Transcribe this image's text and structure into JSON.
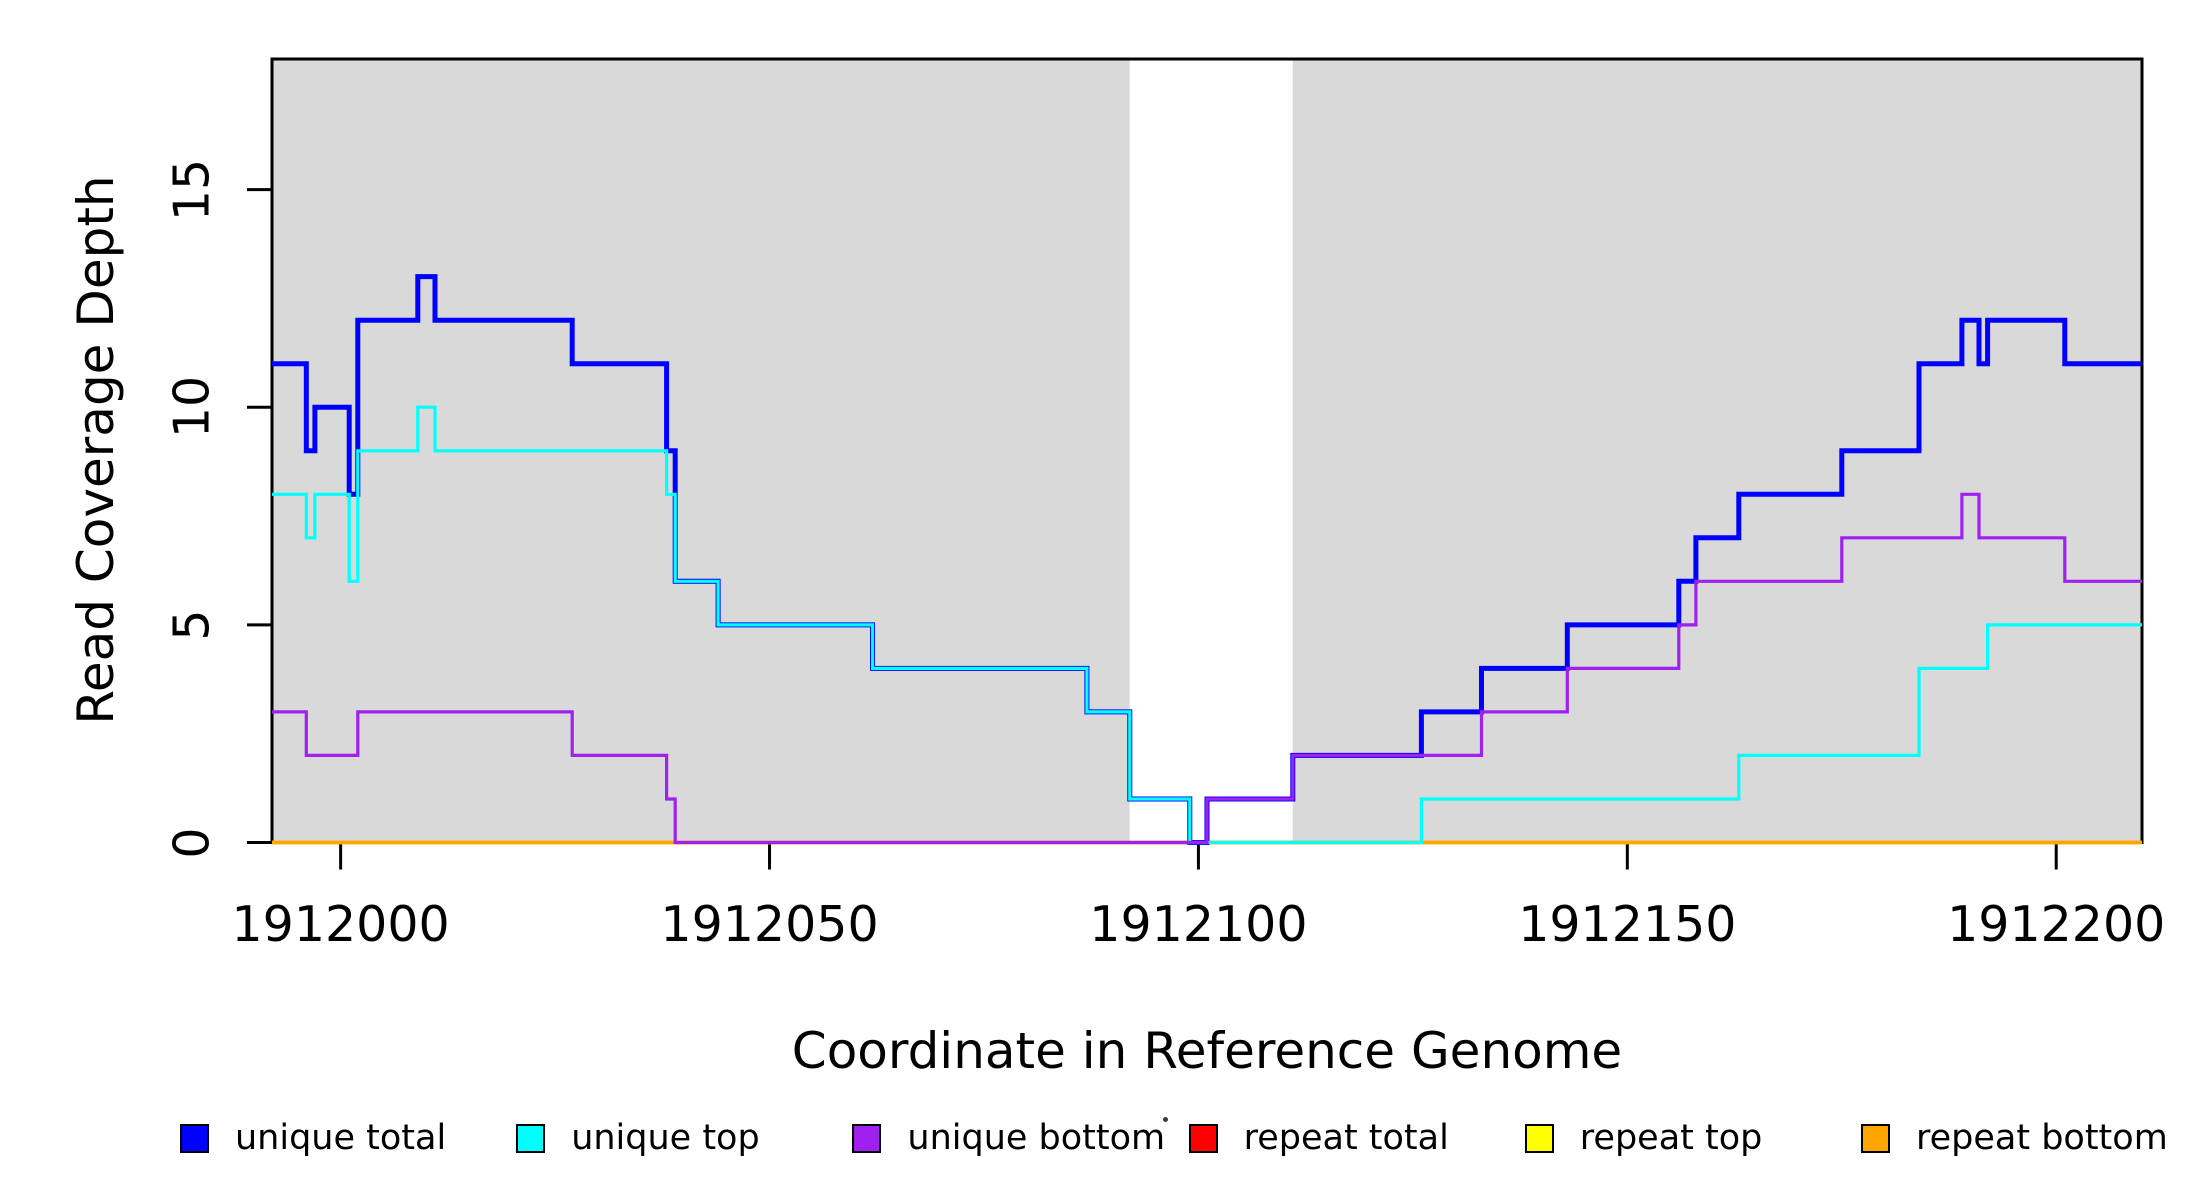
{
  "axes": {
    "x": {
      "label": "Coordinate in Reference Genome",
      "ticks": [
        1912000,
        1912050,
        1912100,
        1912150,
        1912200
      ],
      "range": [
        1911992,
        1912210
      ]
    },
    "y": {
      "label": "Read Coverage Depth",
      "ticks": [
        0,
        5,
        10,
        15
      ],
      "range": [
        0,
        18
      ]
    }
  },
  "chart_data": {
    "type": "line",
    "step_mode": "step-after",
    "title": "",
    "xlabel": "Coordinate in Reference Genome",
    "ylabel": "Read Coverage Depth",
    "xlim": [
      1911992,
      1912210
    ],
    "ylim": [
      0,
      18
    ],
    "grid": false,
    "plot_background": "#FFFFFF",
    "background_bands": [
      {
        "from": 1911992,
        "to": 1912092,
        "color": "#D9D9D9"
      },
      {
        "from": 1912092,
        "to": 1912111,
        "color": "#FFFFFF"
      },
      {
        "from": 1912111,
        "to": 1912210,
        "color": "#D9D9D9"
      }
    ],
    "x_end": 1912210,
    "series": [
      {
        "name": "repeat total",
        "color": "#FF0000",
        "width": 3.4,
        "steps": [
          [
            1911992,
            0
          ]
        ]
      },
      {
        "name": "repeat top",
        "color": "#FFFF00",
        "width": 3.4,
        "steps": [
          [
            1911992,
            0
          ]
        ]
      },
      {
        "name": "repeat bottom",
        "color": "#FFA500",
        "width": 3.6,
        "steps": [
          [
            1911992,
            0
          ]
        ]
      },
      {
        "name": "unique total",
        "color": "#0000FF",
        "width": 5,
        "steps": [
          [
            1911992,
            11
          ],
          [
            1911996,
            9
          ],
          [
            1911997,
            10
          ],
          [
            1912001,
            8
          ],
          [
            1912002,
            12
          ],
          [
            1912009,
            13
          ],
          [
            1912011,
            12
          ],
          [
            1912027,
            11
          ],
          [
            1912038,
            9
          ],
          [
            1912039,
            6
          ],
          [
            1912044,
            5
          ],
          [
            1912062,
            4
          ],
          [
            1912087,
            3
          ],
          [
            1912092,
            1
          ],
          [
            1912099,
            0
          ],
          [
            1912101,
            1
          ],
          [
            1912111,
            2
          ],
          [
            1912126,
            3
          ],
          [
            1912133,
            4
          ],
          [
            1912143,
            5
          ],
          [
            1912156,
            6
          ],
          [
            1912158,
            7
          ],
          [
            1912163,
            8
          ],
          [
            1912175,
            9
          ],
          [
            1912184,
            11
          ],
          [
            1912189,
            12
          ],
          [
            1912191,
            11
          ],
          [
            1912192,
            12
          ],
          [
            1912201,
            11
          ]
        ]
      },
      {
        "name": "unique top",
        "color": "#00FFFF",
        "width": 3.2,
        "steps": [
          [
            1911992,
            8
          ],
          [
            1911996,
            7
          ],
          [
            1911997,
            8
          ],
          [
            1912001,
            6
          ],
          [
            1912002,
            9
          ],
          [
            1912009,
            10
          ],
          [
            1912011,
            9
          ],
          [
            1912038,
            8
          ],
          [
            1912039,
            6
          ],
          [
            1912044,
            5
          ],
          [
            1912062,
            4
          ],
          [
            1912087,
            3
          ],
          [
            1912092,
            1
          ],
          [
            1912099,
            0
          ],
          [
            1912126,
            1
          ],
          [
            1912163,
            2
          ],
          [
            1912184,
            4
          ],
          [
            1912192,
            5
          ]
        ]
      },
      {
        "name": "unique bottom",
        "color": "#A020F0",
        "width": 3.2,
        "steps": [
          [
            1911992,
            3
          ],
          [
            1911996,
            2
          ],
          [
            1912002,
            3
          ],
          [
            1912027,
            2
          ],
          [
            1912038,
            1
          ],
          [
            1912039,
            0
          ],
          [
            1912101,
            1
          ],
          [
            1912111,
            2
          ],
          [
            1912133,
            3
          ],
          [
            1912143,
            4
          ],
          [
            1912156,
            5
          ],
          [
            1912158,
            6
          ],
          [
            1912175,
            7
          ],
          [
            1912189,
            8
          ],
          [
            1912191,
            7
          ],
          [
            1912201,
            6
          ]
        ]
      }
    ]
  },
  "legend": {
    "items": [
      {
        "label": "unique total",
        "color": "#0000FF"
      },
      {
        "label": "unique top",
        "color": "#00FFFF"
      },
      {
        "label": "unique bottom",
        "color": "#A020F0"
      },
      {
        "label": "repeat total",
        "color": "#FF0000"
      },
      {
        "label": "repeat top",
        "color": "#FFFF00"
      },
      {
        "label": "repeat bottom",
        "color": "#FFA500"
      }
    ],
    "artifact_dot": "·"
  }
}
